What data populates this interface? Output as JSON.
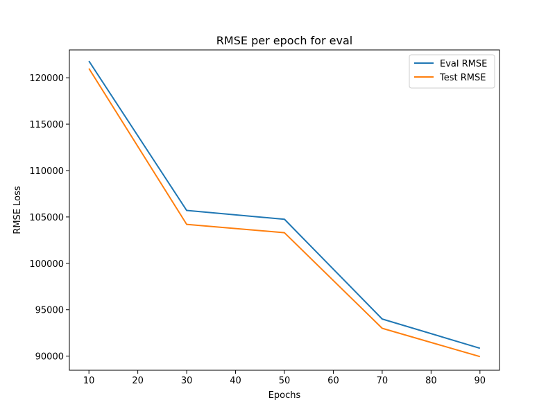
{
  "chart_data": {
    "type": "line",
    "title": "RMSE per epoch for eval",
    "xlabel": "Epochs",
    "ylabel": "RMSE Loss",
    "x": [
      10,
      30,
      50,
      70,
      90
    ],
    "xlim": [
      6,
      94
    ],
    "ylim": [
      88480,
      123000
    ],
    "xticks": [
      10,
      20,
      30,
      40,
      50,
      60,
      70,
      80,
      90
    ],
    "yticks": [
      90000,
      95000,
      100000,
      105000,
      110000,
      115000,
      120000
    ],
    "grid": false,
    "legend_position": "top-right",
    "series": [
      {
        "name": "Eval RMSE",
        "color": "#1f77b4",
        "values": [
          121800,
          105700,
          104750,
          94000,
          90850
        ]
      },
      {
        "name": "Test RMSE",
        "color": "#ff7f0e",
        "values": [
          121000,
          104200,
          103300,
          93000,
          89950
        ]
      }
    ]
  }
}
